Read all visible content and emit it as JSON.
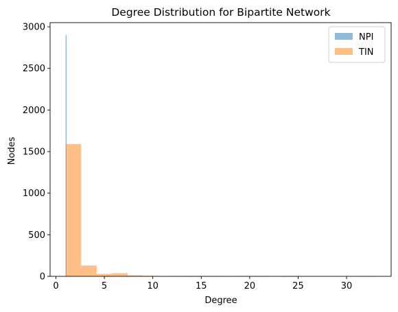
{
  "chart_data": {
    "type": "bar",
    "title": "Degree Distribution for Bipartite Network",
    "xlabel": "Degree",
    "ylabel": "Nodes",
    "xlim": [
      -0.6,
      34.6
    ],
    "ylim": [
      0,
      3050
    ],
    "xticks": [
      0,
      5,
      10,
      15,
      20,
      25,
      30
    ],
    "yticks": [
      0,
      500,
      1000,
      1500,
      2000,
      2500,
      3000
    ],
    "grid": false,
    "legend_position": "top-right",
    "series": [
      {
        "name": "NPI",
        "color": "#1f77b4",
        "alpha": 0.5,
        "bins": [
          {
            "x0": 1.0,
            "x1": 1.1,
            "value": 2900
          }
        ]
      },
      {
        "name": "TIN",
        "color": "#ff7f0e",
        "alpha": 0.5,
        "bins": [
          {
            "x0": 1.0,
            "x1": 2.6,
            "value": 1590
          },
          {
            "x0": 2.6,
            "x1": 4.2,
            "value": 130
          },
          {
            "x0": 4.2,
            "x1": 5.8,
            "value": 30
          },
          {
            "x0": 5.8,
            "x1": 7.4,
            "value": 38
          },
          {
            "x0": 7.4,
            "x1": 9.0,
            "value": 12
          },
          {
            "x0": 9.0,
            "x1": 10.6,
            "value": 6
          },
          {
            "x0": 10.6,
            "x1": 12.2,
            "value": 4
          },
          {
            "x0": 12.2,
            "x1": 13.8,
            "value": 2
          },
          {
            "x0": 13.8,
            "x1": 15.4,
            "value": 1
          },
          {
            "x0": 15.4,
            "x1": 17.0,
            "value": 1
          },
          {
            "x0": 17.0,
            "x1": 18.6,
            "value": 3
          },
          {
            "x0": 18.6,
            "x1": 20.2,
            "value": 2
          },
          {
            "x0": 20.2,
            "x1": 21.8,
            "value": 1
          },
          {
            "x0": 21.8,
            "x1": 23.4,
            "value": 0
          },
          {
            "x0": 23.4,
            "x1": 25.0,
            "value": 1
          },
          {
            "x0": 25.0,
            "x1": 26.6,
            "value": 0
          },
          {
            "x0": 26.6,
            "x1": 28.2,
            "value": 0
          },
          {
            "x0": 28.2,
            "x1": 29.8,
            "value": 0
          },
          {
            "x0": 29.8,
            "x1": 31.4,
            "value": 0
          },
          {
            "x0": 31.4,
            "x1": 33.0,
            "value": 1
          }
        ]
      }
    ]
  }
}
